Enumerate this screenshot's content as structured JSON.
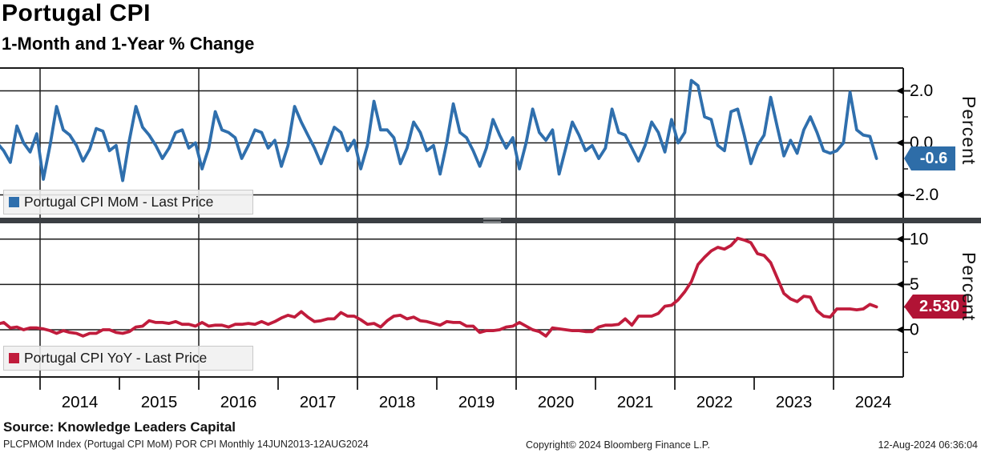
{
  "header": {
    "title": "Portugal CPI",
    "subtitle": "1-Month and 1-Year % Change"
  },
  "colors": {
    "mom_line": "#2F6FAD",
    "mom_tag_bg": "#2E6DA8",
    "yoy_line": "#C01C3C",
    "yoy_tag_bg": "#B11335",
    "grid": "#1b1b1b",
    "separator_bar": "#3b3f43",
    "legend_bg": "#f0f0f0"
  },
  "footer": {
    "source": "Source: Knowledge Leaders Capital",
    "index_info": "PLCPMOM Index (Portugal CPI MoM) POR CPI  Monthly 14JUN2013-12AUG2024",
    "copyright": "Copyright© 2024 Bloomberg Finance L.P.",
    "timestamp": "12-Aug-2024 06:36:04"
  },
  "chart_data": {
    "type": "line",
    "x_axis": {
      "years": [
        2014,
        2015,
        2016,
        2017,
        2018,
        2019,
        2020,
        2021,
        2022,
        2023,
        2024
      ],
      "start": "2013-06",
      "end": "2024-08",
      "gridline_years": [
        2014,
        2016,
        2018,
        2020,
        2022,
        2024
      ]
    },
    "panels": [
      {
        "id": "mom",
        "legend": "Portugal CPI MoM - Last Price",
        "ylabel": "Percent",
        "line_color": "#2F6FAD",
        "ytick_values": [
          2.0,
          0.0,
          -2.0
        ],
        "ytick_labels": [
          "2.0",
          "0.0",
          "-2.0"
        ],
        "minor_tick_values": [
          1.0,
          -1.0
        ],
        "ylim": [
          -2.88,
          2.88
        ],
        "last_price": -0.6,
        "last_price_label": "-0.6",
        "series": {
          "name": "Portugal CPI MoM",
          "freq": "monthly",
          "start_year": 2013,
          "start_month": 6,
          "values": [
            0.0,
            -0.3,
            -0.75,
            0.65,
            0.0,
            -0.35,
            0.35,
            -1.4,
            -0.1,
            1.4,
            0.5,
            0.3,
            -0.1,
            -0.7,
            -0.25,
            0.55,
            0.45,
            -0.3,
            -0.1,
            -1.45,
            0.1,
            1.4,
            0.6,
            0.3,
            -0.1,
            -0.6,
            -0.2,
            0.4,
            0.5,
            -0.2,
            0.0,
            -1.0,
            -0.2,
            1.2,
            0.5,
            0.4,
            0.2,
            -0.6,
            -0.1,
            0.5,
            0.4,
            -0.2,
            0.1,
            -0.9,
            -0.1,
            1.4,
            0.8,
            0.3,
            -0.2,
            -0.8,
            -0.1,
            0.6,
            0.4,
            -0.3,
            0.1,
            -1.0,
            -0.1,
            1.6,
            0.5,
            0.5,
            0.2,
            -0.8,
            -0.2,
            0.8,
            0.4,
            -0.3,
            -0.1,
            -1.2,
            0.0,
            1.5,
            0.4,
            0.2,
            -0.3,
            -0.9,
            -0.2,
            0.9,
            0.3,
            -0.2,
            0.2,
            -1.0,
            0.0,
            1.3,
            0.4,
            0.1,
            0.5,
            -1.2,
            -0.2,
            0.8,
            0.3,
            -0.3,
            -0.1,
            -0.6,
            -0.2,
            1.3,
            0.4,
            0.3,
            -0.2,
            -0.7,
            -0.1,
            0.8,
            0.4,
            -0.35,
            0.9,
            0.0,
            0.4,
            2.4,
            2.2,
            1.0,
            0.9,
            -0.1,
            -0.3,
            1.2,
            1.3,
            0.3,
            -0.8,
            -0.1,
            0.3,
            1.75,
            0.6,
            -0.5,
            0.1,
            -0.4,
            0.5,
            1.0,
            0.4,
            -0.3,
            -0.4,
            -0.3,
            0.0,
            1.95,
            0.5,
            0.3,
            0.25,
            -0.6
          ]
        }
      },
      {
        "id": "yoy",
        "legend": "Portugal CPI YoY - Last Price",
        "ylabel": "Percent",
        "line_color": "#C01C3C",
        "ytick_values": [
          10,
          5,
          0
        ],
        "ytick_labels": [
          "10",
          "5",
          "0"
        ],
        "minor_tick_values": [
          7.5,
          2.5,
          -2.5
        ],
        "ylim": [
          -5.2,
          11.75
        ],
        "last_price": 2.53,
        "last_price_label": "2.530",
        "series": {
          "name": "Portugal CPI YoY",
          "freq": "monthly",
          "start_year": 2013,
          "start_month": 6,
          "values": [
            0.6,
            0.8,
            0.2,
            0.3,
            0.0,
            0.2,
            0.2,
            0.1,
            -0.1,
            -0.4,
            -0.1,
            -0.3,
            -0.4,
            -0.7,
            -0.4,
            -0.4,
            0.0,
            0.0,
            -0.3,
            -0.4,
            -0.2,
            0.3,
            0.4,
            1.0,
            0.8,
            0.8,
            0.7,
            0.9,
            0.6,
            0.6,
            0.4,
            0.8,
            0.4,
            0.5,
            0.5,
            0.3,
            0.6,
            0.6,
            0.7,
            0.6,
            0.9,
            0.6,
            0.9,
            1.3,
            1.6,
            1.4,
            2.0,
            1.4,
            0.9,
            1.0,
            1.2,
            1.2,
            1.9,
            1.5,
            1.5,
            1.1,
            0.6,
            0.7,
            0.3,
            1.0,
            1.5,
            1.6,
            1.2,
            1.4,
            1.0,
            0.9,
            0.7,
            0.5,
            0.9,
            0.8,
            0.8,
            0.4,
            0.4,
            -0.3,
            -0.1,
            -0.1,
            0.0,
            0.3,
            0.4,
            0.8,
            0.4,
            0.0,
            -0.2,
            -0.7,
            0.2,
            0.1,
            0.0,
            -0.1,
            -0.1,
            -0.2,
            -0.2,
            0.3,
            0.5,
            0.5,
            0.6,
            1.2,
            0.5,
            1.5,
            1.5,
            1.5,
            1.8,
            2.6,
            2.7,
            3.3,
            4.2,
            5.3,
            7.2,
            8.0,
            8.7,
            9.1,
            8.9,
            9.3,
            10.1,
            9.9,
            9.6,
            8.4,
            8.2,
            7.4,
            5.7,
            4.0,
            3.4,
            3.1,
            3.7,
            3.6,
            2.1,
            1.5,
            1.4,
            2.3,
            2.3,
            2.3,
            2.2,
            2.3,
            2.8,
            2.53
          ]
        }
      }
    ]
  }
}
